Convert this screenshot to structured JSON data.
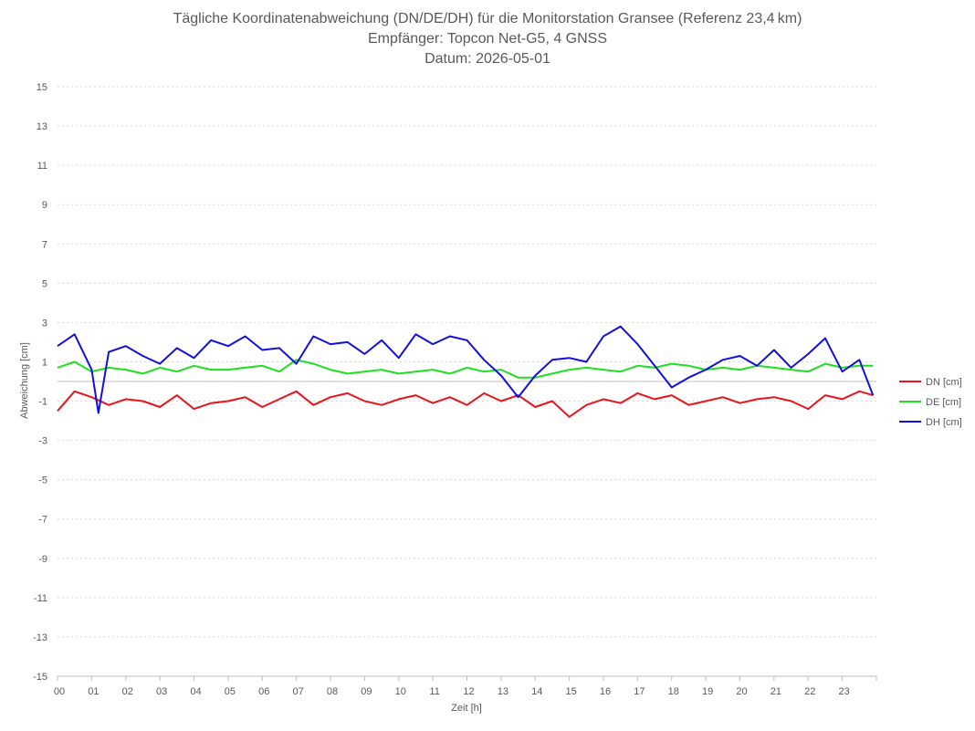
{
  "chart_data": {
    "type": "line",
    "title": "Tägliche Koordinatenabweichung (DN/DE/DH) für die Monitorstation Gransee (Referenz 23,4 km)",
    "subtitle_receiver": "Empfänger: Topcon Net-G5, 4 GNSS",
    "subtitle_date": "Datum: 2026-05-01",
    "xlabel": "Zeit [h]",
    "ylabel": "Abweichung [cm]",
    "xlim": [
      0,
      24
    ],
    "ylim": [
      -15,
      15
    ],
    "x_ticks": [
      "00",
      "01",
      "02",
      "03",
      "04",
      "05",
      "06",
      "07",
      "08",
      "09",
      "10",
      "11",
      "12",
      "13",
      "14",
      "15",
      "16",
      "17",
      "18",
      "19",
      "20",
      "21",
      "22",
      "23"
    ],
    "y_ticks": [
      "15",
      "13",
      "11",
      "9",
      "7",
      "5",
      "3",
      "1",
      "-1",
      "-3",
      "-5",
      "-7",
      "-9",
      "-11",
      "-13",
      "-15"
    ],
    "grid": true,
    "legend_position": "right",
    "series": [
      {
        "name": "DN [cm]",
        "color": "#e8141b",
        "x": [
          0.0,
          0.5,
          1.0,
          1.5,
          2.0,
          2.5,
          3.0,
          3.5,
          4.0,
          4.5,
          5.0,
          5.5,
          6.0,
          6.5,
          7.0,
          7.5,
          8.0,
          8.5,
          9.0,
          9.5,
          10.0,
          10.5,
          11.0,
          11.5,
          12.0,
          12.5,
          13.0,
          13.5,
          14.0,
          14.5,
          15.0,
          15.5,
          16.0,
          16.5,
          17.0,
          17.5,
          18.0,
          18.5,
          19.0,
          19.5,
          20.0,
          20.5,
          21.0,
          21.5,
          22.0,
          22.5,
          23.0,
          23.5,
          23.9
        ],
        "values": [
          -1.5,
          -0.5,
          -0.8,
          -1.2,
          -0.9,
          -1.0,
          -1.3,
          -0.7,
          -1.4,
          -1.1,
          -1.0,
          -0.8,
          -1.3,
          -0.9,
          -0.5,
          -1.2,
          -0.8,
          -0.6,
          -1.0,
          -1.2,
          -0.9,
          -0.7,
          -1.1,
          -0.8,
          -1.2,
          -0.6,
          -1.0,
          -0.7,
          -1.3,
          -1.0,
          -1.8,
          -1.2,
          -0.9,
          -1.1,
          -0.6,
          -0.9,
          -0.7,
          -1.2,
          -1.0,
          -0.8,
          -1.1,
          -0.9,
          -0.8,
          -1.0,
          -1.4,
          -0.7,
          -0.9,
          -0.5,
          -0.7
        ]
      },
      {
        "name": "DE [cm]",
        "color": "#1fe01f",
        "x": [
          0.0,
          0.5,
          1.0,
          1.5,
          2.0,
          2.5,
          3.0,
          3.5,
          4.0,
          4.5,
          5.0,
          5.5,
          6.0,
          6.5,
          7.0,
          7.5,
          8.0,
          8.5,
          9.0,
          9.5,
          10.0,
          10.5,
          11.0,
          11.5,
          12.0,
          12.5,
          13.0,
          13.5,
          14.0,
          14.5,
          15.0,
          15.5,
          16.0,
          16.5,
          17.0,
          17.5,
          18.0,
          18.5,
          19.0,
          19.5,
          20.0,
          20.5,
          21.0,
          21.5,
          22.0,
          22.5,
          23.0,
          23.5,
          23.9
        ],
        "values": [
          0.7,
          1.0,
          0.5,
          0.7,
          0.6,
          0.4,
          0.7,
          0.5,
          0.8,
          0.6,
          0.6,
          0.7,
          0.8,
          0.5,
          1.1,
          0.9,
          0.6,
          0.4,
          0.5,
          0.6,
          0.4,
          0.5,
          0.6,
          0.4,
          0.7,
          0.5,
          0.6,
          0.2,
          0.2,
          0.4,
          0.6,
          0.7,
          0.6,
          0.5,
          0.8,
          0.7,
          0.9,
          0.8,
          0.6,
          0.7,
          0.6,
          0.8,
          0.7,
          0.6,
          0.5,
          0.9,
          0.7,
          0.8,
          0.8
        ]
      },
      {
        "name": "DH [cm]",
        "color": "#1010e0",
        "x": [
          0.0,
          0.5,
          1.0,
          1.2,
          1.5,
          2.0,
          2.5,
          3.0,
          3.5,
          4.0,
          4.5,
          5.0,
          5.5,
          6.0,
          6.5,
          7.0,
          7.5,
          8.0,
          8.5,
          9.0,
          9.5,
          10.0,
          10.5,
          11.0,
          11.5,
          12.0,
          12.5,
          13.0,
          13.5,
          14.0,
          14.5,
          15.0,
          15.5,
          16.0,
          16.5,
          17.0,
          17.5,
          18.0,
          18.5,
          19.0,
          19.5,
          20.0,
          20.5,
          21.0,
          21.5,
          22.0,
          22.5,
          23.0,
          23.5,
          23.9
        ],
        "values": [
          1.8,
          2.4,
          0.6,
          -1.6,
          1.5,
          1.8,
          1.3,
          0.9,
          1.7,
          1.2,
          2.1,
          1.8,
          2.3,
          1.6,
          1.7,
          0.9,
          2.3,
          1.9,
          2.0,
          1.4,
          2.1,
          1.2,
          2.4,
          1.9,
          2.3,
          2.1,
          1.1,
          0.3,
          -0.8,
          0.3,
          1.1,
          1.2,
          1.0,
          2.3,
          2.8,
          1.9,
          0.8,
          -0.3,
          0.2,
          0.6,
          1.1,
          1.3,
          0.8,
          1.6,
          0.7,
          1.4,
          2.2,
          0.5,
          1.1,
          -0.7
        ]
      }
    ]
  }
}
